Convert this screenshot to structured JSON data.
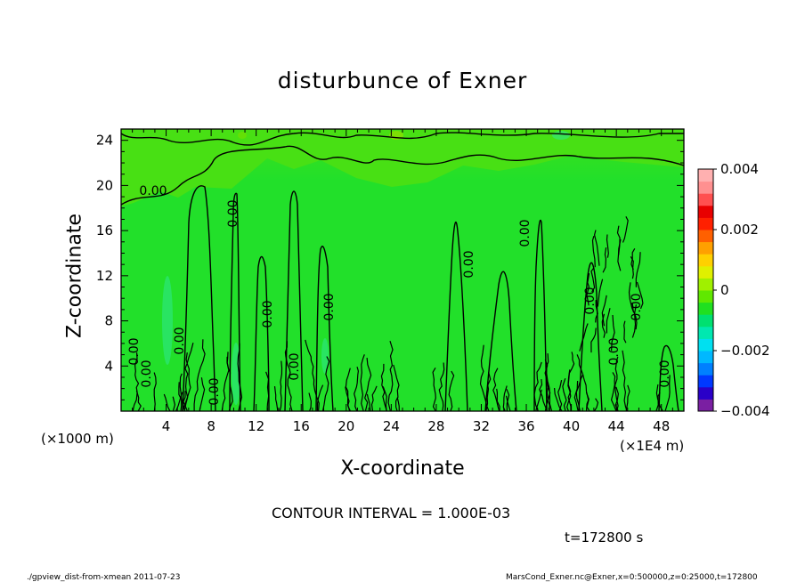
{
  "chart_data": {
    "type": "heatmap",
    "title": "disturbunce of Exner",
    "xlabel": "X-coordinate",
    "ylabel": "Z-coordinate",
    "x_unit_left": "(×1000 m)",
    "x_unit_right": "(×1E4 m)",
    "xticks": [
      "4",
      "8",
      "12",
      "16",
      "20",
      "24",
      "28",
      "32",
      "36",
      "40",
      "44",
      "48"
    ],
    "xtick_values": [
      4,
      8,
      12,
      16,
      20,
      24,
      28,
      32,
      36,
      40,
      44,
      48
    ],
    "yticks": [
      "4",
      "8",
      "12",
      "16",
      "20",
      "24"
    ],
    "ytick_values": [
      4,
      8,
      12,
      16,
      20,
      24
    ],
    "xlim": [
      0,
      50
    ],
    "ylim": [
      0,
      25
    ],
    "contour_labels": [
      "0.00",
      "0.00",
      "0.00",
      "0.00",
      "0.00",
      "0.00",
      "0.00",
      "0.00",
      "0.00",
      "0.00",
      "0.00",
      "0.00",
      "0.00",
      "0.00",
      "0.00"
    ],
    "colorbar": {
      "ticks": [
        "0.004",
        "0.002",
        "0",
        "−0.002",
        "−0.004"
      ],
      "tick_values": [
        0.004,
        0.002,
        0,
        -0.002,
        -0.004
      ],
      "range": [
        -0.004,
        0.004
      ],
      "colors": [
        "#7a1fa2",
        "#2a00c8",
        "#0038ff",
        "#0080ff",
        "#00b8ff",
        "#00e0f0",
        "#00e8b0",
        "#00e070",
        "#20e020",
        "#60e800",
        "#a0f000",
        "#e0f000",
        "#ffd000",
        "#ffa000",
        "#ff6000",
        "#ff2000",
        "#e80000",
        "#ff5050",
        "#ff9090",
        "#ffb0b0"
      ]
    },
    "contour_interval": "CONTOUR INTERVAL = 1.000E-03",
    "time": "t=172800 s",
    "footer_left": "./gpview_dist-from-xmean 2011-07-23",
    "footer_right": "MarsCond_Exner.nc@Exner,x=0:500000,z=0:25000,t=172800"
  }
}
